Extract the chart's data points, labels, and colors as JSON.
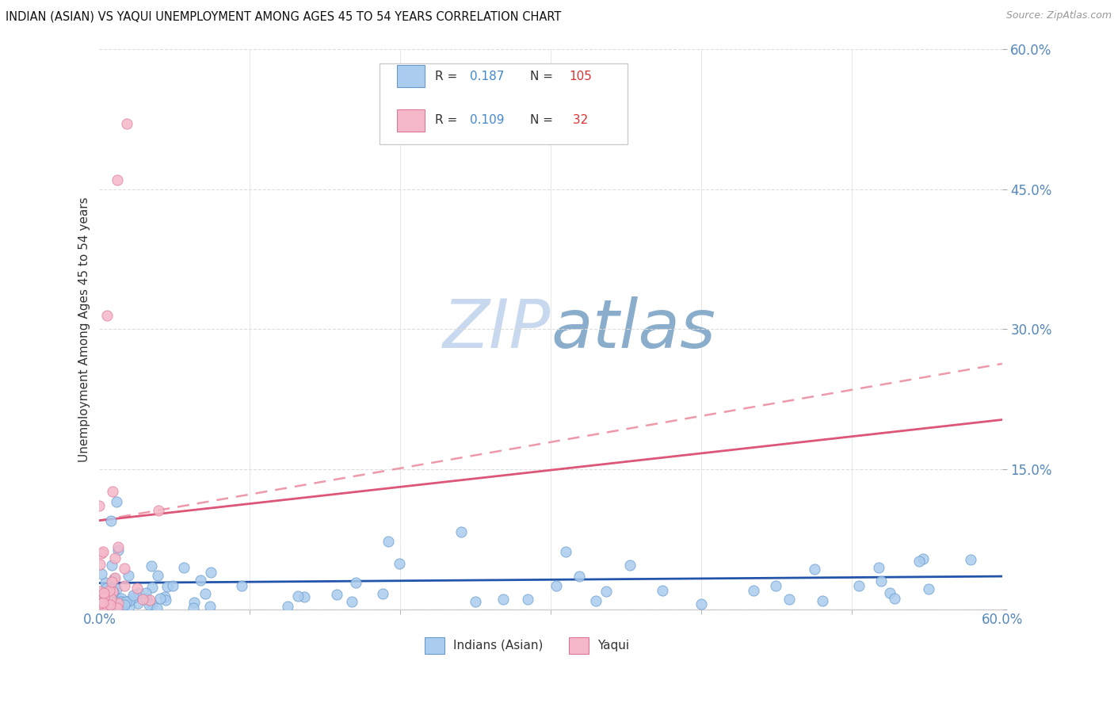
{
  "title": "INDIAN (ASIAN) VS YAQUI UNEMPLOYMENT AMONG AGES 45 TO 54 YEARS CORRELATION CHART",
  "source": "Source: ZipAtlas.com",
  "ylabel": "Unemployment Among Ages 45 to 54 years",
  "xlim": [
    0.0,
    0.6
  ],
  "ylim": [
    0.0,
    0.6
  ],
  "yticks": [
    0.0,
    0.15,
    0.3,
    0.45,
    0.6
  ],
  "ytick_labels": [
    "",
    "15.0%",
    "30.0%",
    "45.0%",
    "60.0%"
  ],
  "xtick_labels": [
    "0.0%",
    "60.0%"
  ],
  "xticks": [
    0.0,
    0.6
  ],
  "color_asian_fill": "#aaccee",
  "color_asian_edge": "#6699cc",
  "color_yaqui_fill": "#f5b8c8",
  "color_yaqui_edge": "#dd7799",
  "color_asian_line": "#2255aa",
  "color_yaqui_solid": "#dd5577",
  "color_yaqui_dash": "#ee99aa",
  "tick_color": "#5588bb",
  "grid_color": "#dddddd",
  "background_color": "#ffffff",
  "asian_trend_slope": 0.012,
  "asian_trend_intercept": 0.028,
  "yaqui_solid_slope": 0.18,
  "yaqui_solid_intercept": 0.095,
  "yaqui_dash_slope": 0.28,
  "yaqui_dash_intercept": 0.095
}
